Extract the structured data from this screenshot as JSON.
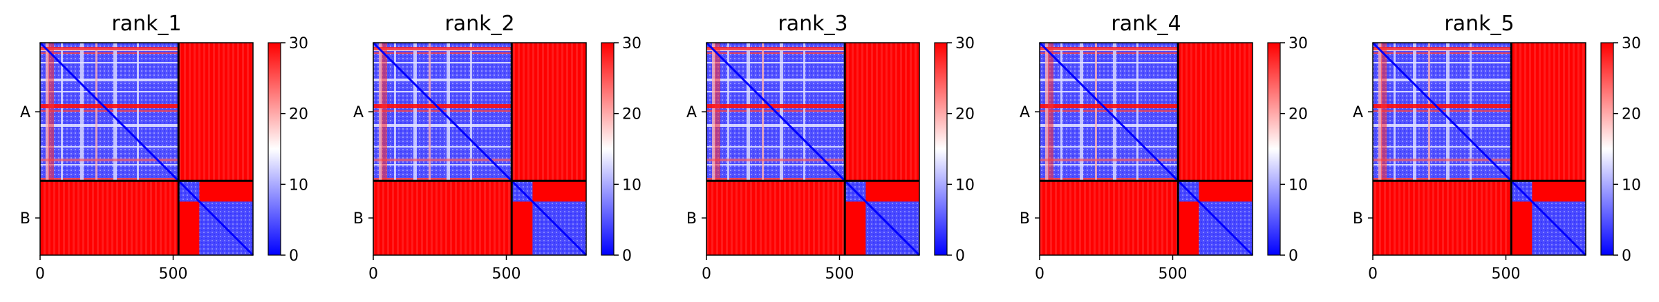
{
  "chart_data": {
    "type": "heatmap",
    "colorbar": {
      "range": [
        0,
        30
      ],
      "ticks": [
        "0",
        "10",
        "20",
        "30"
      ],
      "colors": {
        "low": "#0000ff",
        "mid": "#ffffff",
        "high": "#ff0000"
      }
    },
    "x_range": [
      0,
      800
    ],
    "x_ticks": [
      "0",
      "500"
    ],
    "x_tick_values": [
      0,
      500
    ],
    "chains": [
      {
        "label": "A",
        "start": 0,
        "end": 520
      },
      {
        "label": "B",
        "start": 520,
        "end": 800
      }
    ],
    "panels": [
      {
        "title": "rank_1"
      },
      {
        "title": "rank_2"
      },
      {
        "title": "rank_3"
      },
      {
        "title": "rank_4"
      },
      {
        "title": "rank_5"
      }
    ]
  }
}
